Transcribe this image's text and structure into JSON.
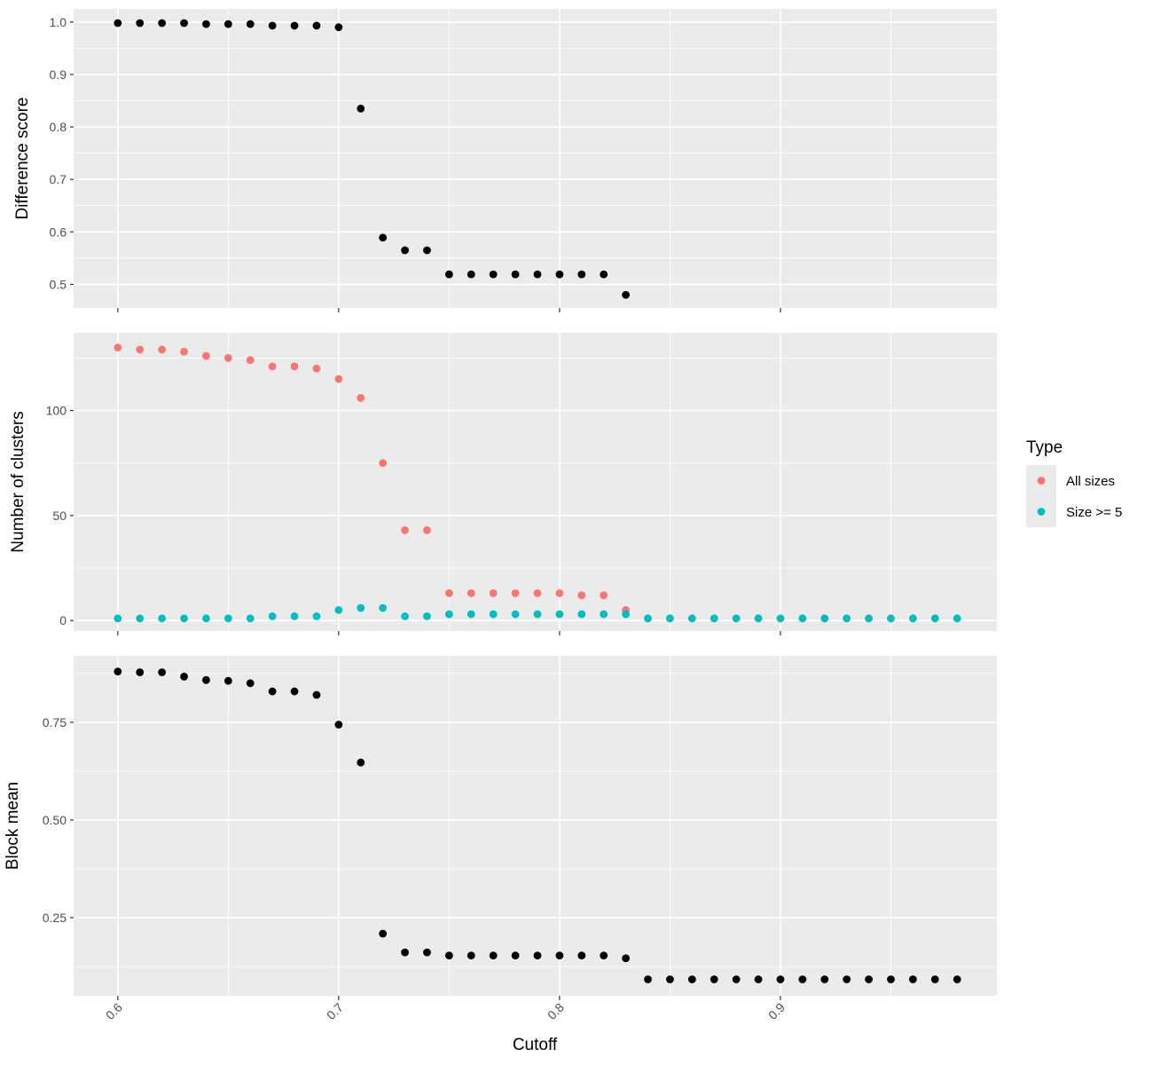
{
  "chart_data": {
    "type": "scatter",
    "xlabel": "Cutoff",
    "xlim": [
      0.58,
      0.998
    ],
    "x_ticks": [
      "0.6",
      "0.7",
      "0.8",
      "0.9"
    ],
    "x_tick_values": [
      0.6,
      0.7,
      0.8,
      0.9
    ],
    "grid": true,
    "legend": {
      "title": "Type",
      "placement": "right",
      "entries": [
        {
          "name": "All sizes",
          "color": "#F8766D"
        },
        {
          "name": "Size >= 5",
          "color": "#00BFC4"
        }
      ]
    },
    "panels": [
      {
        "ylabel": "Difference score",
        "ylim": [
          0.455,
          1.025
        ],
        "y_ticks": [
          "0.5",
          "0.6",
          "0.7",
          "0.8",
          "0.9",
          "1.0"
        ],
        "y_tick_values": [
          0.5,
          0.6,
          0.7,
          0.8,
          0.9,
          1.0
        ],
        "series": [
          {
            "color": "#000000",
            "x": [
              0.6,
              0.61,
              0.62,
              0.63,
              0.64,
              0.65,
              0.66,
              0.67,
              0.68,
              0.69,
              0.7,
              0.71,
              0.72,
              0.73,
              0.74,
              0.75,
              0.76,
              0.77,
              0.78,
              0.79,
              0.8,
              0.81,
              0.82,
              0.83
            ],
            "y": [
              0.998,
              0.998,
              0.998,
              0.998,
              0.996,
              0.996,
              0.996,
              0.993,
              0.993,
              0.993,
              0.99,
              0.835,
              0.589,
              0.565,
              0.565,
              0.519,
              0.519,
              0.519,
              0.519,
              0.519,
              0.519,
              0.519,
              0.519,
              0.48
            ]
          }
        ]
      },
      {
        "ylabel": "Number of clusters",
        "ylim": [
          -5,
          137
        ],
        "y_ticks": [
          "0",
          "50",
          "100"
        ],
        "y_tick_values": [
          0,
          50,
          100
        ],
        "series": [
          {
            "name": "All sizes",
            "color": "#F8766D",
            "x": [
              0.6,
              0.61,
              0.62,
              0.63,
              0.64,
              0.65,
              0.66,
              0.67,
              0.68,
              0.69,
              0.7,
              0.71,
              0.72,
              0.73,
              0.74,
              0.75,
              0.76,
              0.77,
              0.78,
              0.79,
              0.8,
              0.81,
              0.82,
              0.83,
              0.84,
              0.85,
              0.86,
              0.87,
              0.88,
              0.89,
              0.9,
              0.91,
              0.92,
              0.93,
              0.94,
              0.95,
              0.96,
              0.97,
              0.98
            ],
            "y": [
              130,
              129,
              129,
              128,
              126,
              125,
              124,
              121,
              121,
              120,
              115,
              106,
              75,
              43,
              43,
              13,
              13,
              13,
              13,
              13,
              13,
              12,
              12,
              5,
              1,
              1,
              1,
              1,
              1,
              1,
              1,
              1,
              1,
              1,
              1,
              1,
              1,
              1,
              1
            ]
          },
          {
            "name": "Size >= 5",
            "color": "#00BFC4",
            "x": [
              0.6,
              0.61,
              0.62,
              0.63,
              0.64,
              0.65,
              0.66,
              0.67,
              0.68,
              0.69,
              0.7,
              0.71,
              0.72,
              0.73,
              0.74,
              0.75,
              0.76,
              0.77,
              0.78,
              0.79,
              0.8,
              0.81,
              0.82,
              0.83,
              0.84,
              0.85,
              0.86,
              0.87,
              0.88,
              0.89,
              0.9,
              0.91,
              0.92,
              0.93,
              0.94,
              0.95,
              0.96,
              0.97,
              0.98
            ],
            "y": [
              1,
              1,
              1,
              1,
              1,
              1,
              1,
              2,
              2,
              2,
              5,
              6,
              6,
              2,
              2,
              3,
              3,
              3,
              3,
              3,
              3,
              3,
              3,
              3,
              1,
              1,
              1,
              1,
              1,
              1,
              1,
              1,
              1,
              1,
              1,
              1,
              1,
              1,
              1
            ]
          }
        ]
      },
      {
        "ylabel": "Block mean",
        "ylim": [
          0.05,
          0.92
        ],
        "y_ticks": [
          "0.25",
          "0.50",
          "0.75"
        ],
        "y_tick_values": [
          0.25,
          0.5,
          0.75
        ],
        "series": [
          {
            "color": "#000000",
            "x": [
              0.6,
              0.61,
              0.62,
              0.63,
              0.64,
              0.65,
              0.66,
              0.67,
              0.68,
              0.69,
              0.7,
              0.71,
              0.72,
              0.73,
              0.74,
              0.75,
              0.76,
              0.77,
              0.78,
              0.79,
              0.8,
              0.81,
              0.82,
              0.83,
              0.84,
              0.85,
              0.86,
              0.87,
              0.88,
              0.89,
              0.9,
              0.91,
              0.92,
              0.93,
              0.94,
              0.95,
              0.96,
              0.97,
              0.98
            ],
            "y": [
              0.88,
              0.878,
              0.878,
              0.867,
              0.858,
              0.856,
              0.85,
              0.829,
              0.829,
              0.82,
              0.744,
              0.647,
              0.209,
              0.161,
              0.161,
              0.153,
              0.153,
              0.153,
              0.153,
              0.153,
              0.153,
              0.153,
              0.153,
              0.146,
              0.092,
              0.092,
              0.092,
              0.092,
              0.092,
              0.092,
              0.092,
              0.092,
              0.092,
              0.092,
              0.092,
              0.092,
              0.092,
              0.092,
              0.092
            ]
          }
        ]
      }
    ]
  }
}
